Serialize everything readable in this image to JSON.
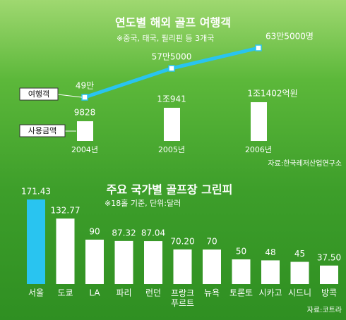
{
  "chart_data": [
    {
      "type": "combo",
      "title": "연도별 해외 골프 여행객",
      "subtitle": "※중국, 태국, 필리핀 등 3개국",
      "categories": [
        "2004년",
        "2005년",
        "2006년"
      ],
      "series": [
        {
          "name": "여행객",
          "type": "line",
          "color": "#29c4f0",
          "values": [
            49,
            57.5,
            63.5
          ],
          "value_labels": [
            "49만",
            "57만5000",
            "63만5000명"
          ]
        },
        {
          "name": "사용금액",
          "type": "bar",
          "color": "#ffffff",
          "values": [
            9828,
            10941,
            11402
          ],
          "value_labels": [
            "9828",
            "1조941",
            "1조1402억원"
          ]
        }
      ],
      "source": "자료:한국레저산업연구소"
    },
    {
      "type": "bar",
      "title": "주요 국가별 골프장 그린피",
      "subtitle": "※18홀 기준, 단위:달러",
      "categories": [
        "서울",
        "도쿄",
        "LA",
        "파리",
        "런던",
        "프랑크\n푸르트",
        "뉴욕",
        "토론토",
        "시카고",
        "시드니",
        "방콕"
      ],
      "values": [
        171.43,
        132.77,
        90,
        87.32,
        87.04,
        70.2,
        70,
        50,
        48,
        45,
        37.5
      ],
      "value_labels": [
        "171.43",
        "132.77",
        "90",
        "87.32",
        "87.04",
        "70.20",
        "70",
        "50",
        "48",
        "45",
        "37.50"
      ],
      "colors": [
        "#29c4f0",
        "#ffffff",
        "#ffffff",
        "#ffffff",
        "#ffffff",
        "#ffffff",
        "#ffffff",
        "#ffffff",
        "#ffffff",
        "#ffffff",
        "#ffffff"
      ],
      "source": "자료:코트라"
    }
  ]
}
